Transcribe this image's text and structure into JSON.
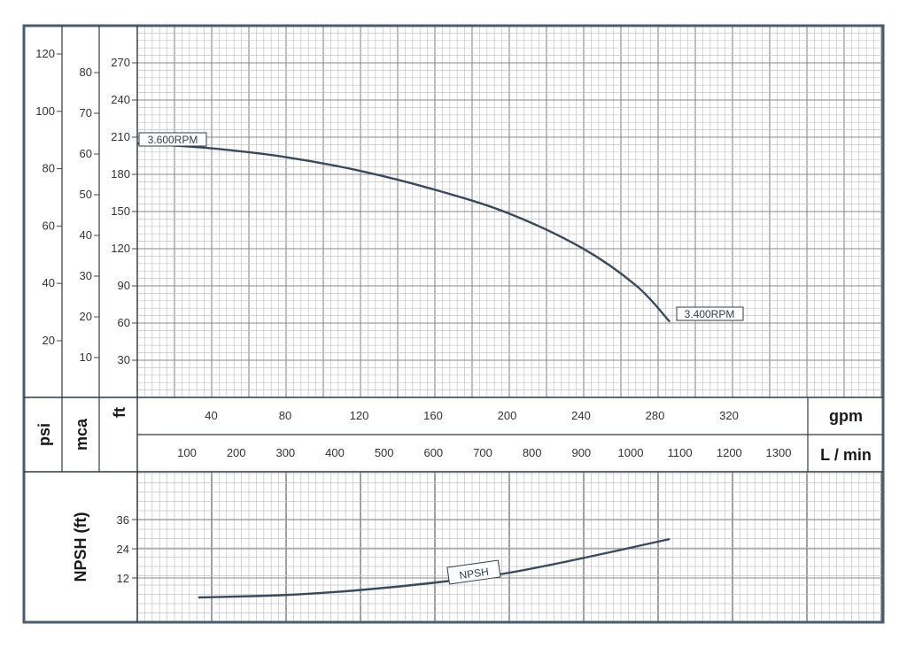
{
  "chart_data": [
    {
      "type": "line",
      "description_labels": {
        "left_axes": [
          "psi",
          "mca",
          "ft"
        ],
        "bottom_axes": [
          "gpm",
          "L / min"
        ]
      },
      "axes": {
        "psi": {
          "label": "psi",
          "ticks": [
            20,
            40,
            60,
            80,
            100,
            120
          ]
        },
        "mca": {
          "label": "mca",
          "ticks": [
            10,
            20,
            30,
            40,
            50,
            60,
            70,
            80
          ]
        },
        "ft": {
          "label": "ft",
          "ticks": [
            30,
            60,
            90,
            120,
            150,
            180,
            210,
            240,
            270
          ]
        },
        "gpm": {
          "label": "gpm",
          "ticks": [
            40,
            80,
            120,
            160,
            200,
            240,
            280,
            320
          ]
        },
        "lmin": {
          "label": "L / min",
          "ticks": [
            100,
            200,
            300,
            400,
            500,
            600,
            700,
            800,
            900,
            1000,
            1100,
            1200,
            1300
          ]
        }
      },
      "xlim_gpm": [
        0,
        360
      ],
      "ylim_ft": [
        0,
        285
      ],
      "grid": true,
      "series": [
        {
          "x_gpm": [
            0,
            40,
            80,
            120,
            160,
            200,
            240,
            270,
            288
          ],
          "y_ft": [
            205,
            201,
            194,
            183,
            168,
            149,
            121,
            90,
            61
          ],
          "start_label": "3.600RPM",
          "end_label": "3.400RPM",
          "color": "#3a4a5a"
        }
      ]
    },
    {
      "type": "line",
      "yaxis": {
        "label": "NPSH (ft)",
        "ticks": [
          12,
          24,
          36
        ]
      },
      "xlim_gpm": [
        0,
        360
      ],
      "ylim_ft": [
        0,
        48
      ],
      "grid": true,
      "series": [
        {
          "x_gpm": [
            33,
            80,
            120,
            160,
            200,
            240,
            288
          ],
          "y_ft": [
            4,
            5,
            7,
            10,
            14,
            20,
            28
          ],
          "label": "NPSH",
          "color": "#3a4a5a"
        }
      ]
    }
  ]
}
